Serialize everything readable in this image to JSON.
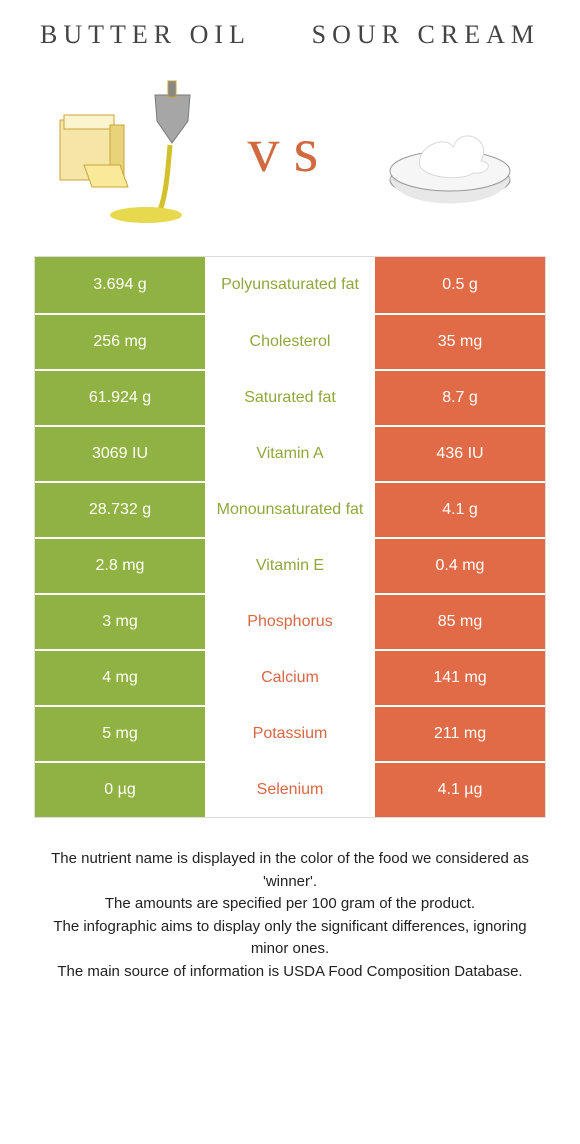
{
  "colors": {
    "green": "#90b242",
    "orange": "#e06b46",
    "green_text": "#8ea83e",
    "orange_text": "#d76844"
  },
  "title_left": "butter oil",
  "title_right": "sour cream",
  "vs": "vs",
  "rows": [
    {
      "left": "3.694 g",
      "nutrient": "Polyunsaturated fat",
      "right": "0.5 g",
      "winner": "left"
    },
    {
      "left": "256 mg",
      "nutrient": "Cholesterol",
      "right": "35 mg",
      "winner": "left"
    },
    {
      "left": "61.924 g",
      "nutrient": "Saturated fat",
      "right": "8.7 g",
      "winner": "left"
    },
    {
      "left": "3069 IU",
      "nutrient": "Vitamin A",
      "right": "436 IU",
      "winner": "left"
    },
    {
      "left": "28.732 g",
      "nutrient": "Monounsaturated fat",
      "right": "4.1 g",
      "winner": "left"
    },
    {
      "left": "2.8 mg",
      "nutrient": "Vitamin E",
      "right": "0.4 mg",
      "winner": "left"
    },
    {
      "left": "3 mg",
      "nutrient": "Phosphorus",
      "right": "85 mg",
      "winner": "right"
    },
    {
      "left": "4 mg",
      "nutrient": "Calcium",
      "right": "141 mg",
      "winner": "right"
    },
    {
      "left": "5 mg",
      "nutrient": "Potassium",
      "right": "211 mg",
      "winner": "right"
    },
    {
      "left": "0 µg",
      "nutrient": "Selenium",
      "right": "4.1 µg",
      "winner": "right"
    }
  ],
  "footer": [
    "The nutrient name is displayed in the color of the food we considered as 'winner'.",
    "The amounts are specified per 100 gram of the product.",
    "The infographic aims to display only the significant differences, ignoring minor ones.",
    "The main source of information is USDA Food Composition Database."
  ]
}
